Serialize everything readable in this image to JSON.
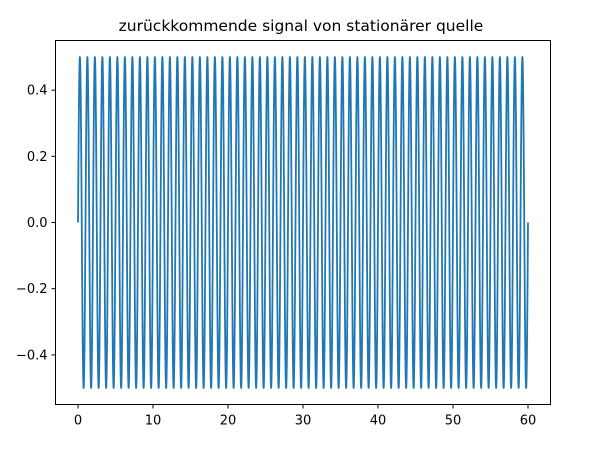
{
  "chart_data": {
    "type": "line",
    "title": "zurückkommende signal von stationärer quelle",
    "xlabel": "",
    "ylabel": "",
    "xlim": [
      -3,
      63
    ],
    "ylim": [
      -0.55,
      0.55
    ],
    "xticks": [
      0,
      10,
      20,
      30,
      40,
      50,
      60
    ],
    "yticks": [
      -0.4,
      -0.2,
      0.0,
      0.2,
      0.4
    ],
    "ytick_labels": [
      "−0.4",
      "−0.2",
      "0.0",
      "0.2",
      "0.4"
    ],
    "grid": false,
    "legend": "none",
    "series": [
      {
        "function": "0.5 * sin(2*pi*t)",
        "amplitude": 0.5,
        "frequency_hz": 1,
        "x_start": 0,
        "x_end": 60,
        "color": "#1f77b4"
      }
    ]
  }
}
